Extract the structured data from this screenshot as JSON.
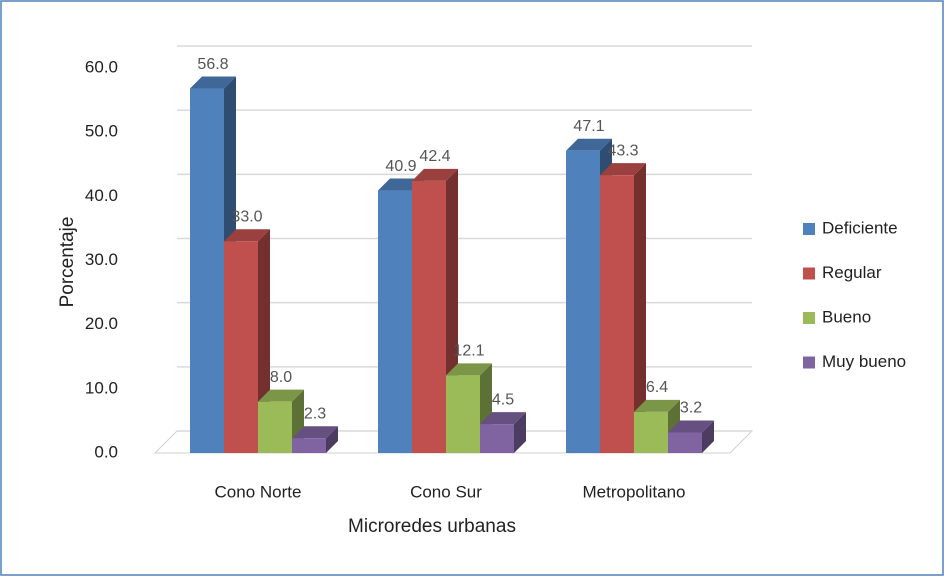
{
  "chart_data": {
    "type": "bar3d",
    "x_label": "Microredes urbanas",
    "y_label": "Porcentaje",
    "categories": [
      "Cono Norte",
      "Cono Sur",
      "Metropolitano"
    ],
    "series": [
      {
        "name": "Deficiente",
        "color": "#4f81bd",
        "values": [
          56.8,
          40.9,
          47.1
        ],
        "value_labels": [
          "56.8",
          "40.9",
          "47.1"
        ]
      },
      {
        "name": "Regular",
        "color": "#c0504d",
        "values": [
          33.0,
          42.4,
          43.3
        ],
        "value_labels": [
          "33.0",
          "42.4",
          "43.3"
        ]
      },
      {
        "name": "Bueno",
        "color": "#9bbb59",
        "values": [
          8.0,
          12.1,
          6.4
        ],
        "value_labels": [
          "8.0",
          "12.1",
          "6.4"
        ]
      },
      {
        "name": "Muy bueno",
        "color": "#8064a2",
        "values": [
          2.3,
          4.5,
          3.2
        ],
        "value_labels": [
          "2.3",
          "4.5",
          "3.2"
        ]
      }
    ],
    "ylim": [
      0,
      60
    ],
    "yticks": [
      {
        "value": 0,
        "label": "0.0"
      },
      {
        "value": 10,
        "label": "10.0"
      },
      {
        "value": 20,
        "label": "20.0"
      },
      {
        "value": 30,
        "label": "30.0"
      },
      {
        "value": 40,
        "label": "40.0"
      },
      {
        "value": 50,
        "label": "50.0"
      },
      {
        "value": 60,
        "label": "60.0"
      }
    ],
    "grid": true,
    "legend": "right"
  }
}
